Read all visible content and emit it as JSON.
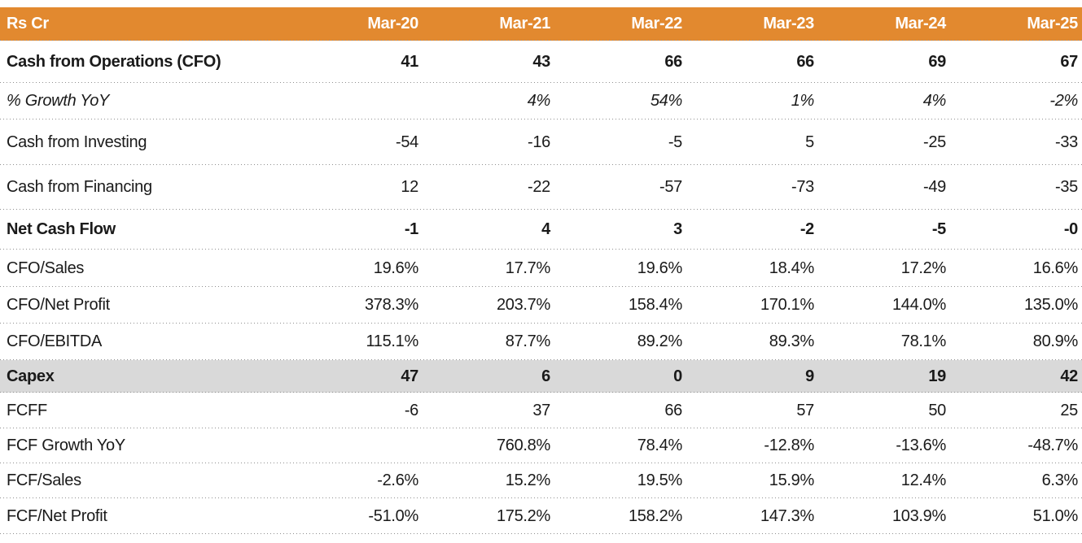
{
  "chart_data": {
    "type": "table",
    "unit_label": "Rs Cr",
    "columns": [
      "Mar-20",
      "Mar-21",
      "Mar-22",
      "Mar-23",
      "Mar-24",
      "Mar-25"
    ],
    "rows": [
      {
        "label": "Cash from Operations (CFO)",
        "values": [
          "41",
          "43",
          "66",
          "66",
          "69",
          "67"
        ],
        "emphasis": "bold",
        "highlight": false
      },
      {
        "label": "% Growth YoY",
        "values": [
          "",
          "4%",
          "54%",
          "1%",
          "4%",
          "-2%"
        ],
        "emphasis": "italic",
        "highlight": false
      },
      {
        "label": "Cash from Investing",
        "values": [
          "-54",
          "-16",
          "-5",
          "5",
          "-25",
          "-33"
        ],
        "emphasis": "normal",
        "highlight": false
      },
      {
        "label": "Cash from Financing",
        "values": [
          "12",
          "-22",
          "-57",
          "-73",
          "-49",
          "-35"
        ],
        "emphasis": "normal",
        "highlight": false
      },
      {
        "label": "Net Cash Flow",
        "values": [
          "-1",
          "4",
          "3",
          "-2",
          "-5",
          "-0"
        ],
        "emphasis": "bold",
        "highlight": false
      },
      {
        "label": "CFO/Sales",
        "values": [
          "19.6%",
          "17.7%",
          "19.6%",
          "18.4%",
          "17.2%",
          "16.6%"
        ],
        "emphasis": "normal",
        "highlight": false
      },
      {
        "label": "CFO/Net Profit",
        "values": [
          "378.3%",
          "203.7%",
          "158.4%",
          "170.1%",
          "144.0%",
          "135.0%"
        ],
        "emphasis": "normal",
        "highlight": false
      },
      {
        "label": "CFO/EBITDA",
        "values": [
          "115.1%",
          "87.7%",
          "89.2%",
          "89.3%",
          "78.1%",
          "80.9%"
        ],
        "emphasis": "normal",
        "highlight": false
      },
      {
        "label": "Capex",
        "values": [
          "47",
          "6",
          "0",
          "9",
          "19",
          "42"
        ],
        "emphasis": "bold",
        "highlight": true
      },
      {
        "label": "FCFF",
        "values": [
          "-6",
          "37",
          "66",
          "57",
          "50",
          "25"
        ],
        "emphasis": "normal",
        "highlight": false
      },
      {
        "label": "FCF Growth YoY",
        "values": [
          "",
          "760.8%",
          "78.4%",
          "-12.8%",
          "-13.6%",
          "-48.7%"
        ],
        "emphasis": "normal",
        "highlight": false
      },
      {
        "label": "FCF/Sales",
        "values": [
          "-2.6%",
          "15.2%",
          "19.5%",
          "15.9%",
          "12.4%",
          "6.3%"
        ],
        "emphasis": "normal",
        "highlight": false
      },
      {
        "label": "FCF/Net Profit",
        "values": [
          "-51.0%",
          "175.2%",
          "158.2%",
          "147.3%",
          "103.9%",
          "51.0%"
        ],
        "emphasis": "normal",
        "highlight": false
      }
    ]
  },
  "colors": {
    "header_bg": "#E2892F",
    "header_text": "#FFFFFF",
    "highlight_bg": "#D9D9D9",
    "divider": "#8F8F8F",
    "text": "#1A1A1A"
  }
}
